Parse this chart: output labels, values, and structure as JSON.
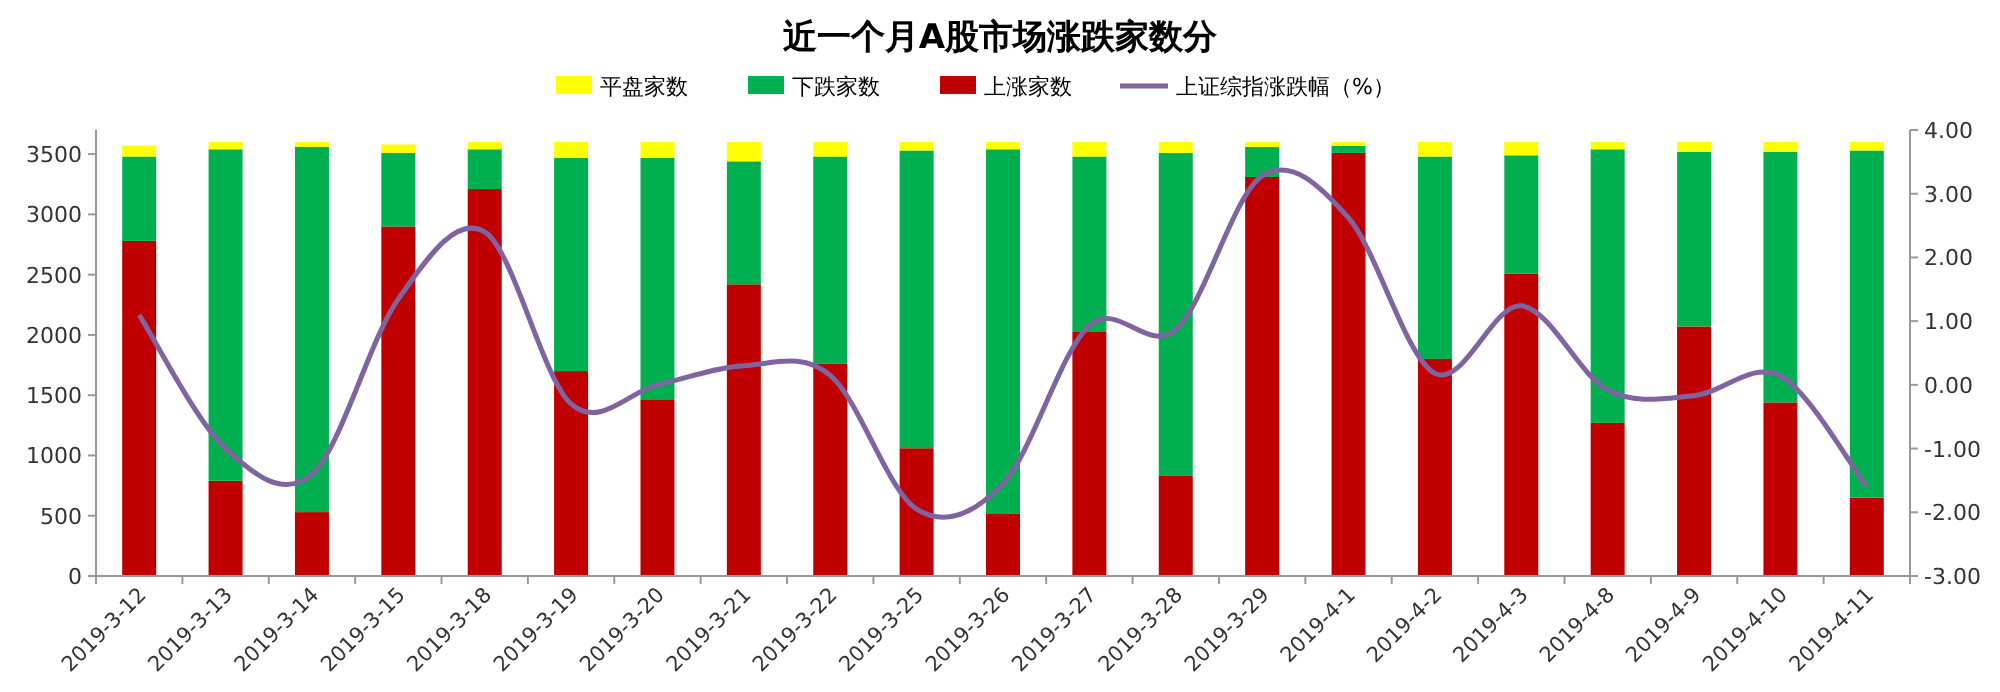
{
  "chart_data": {
    "type": "bar",
    "title": "近一个月A股市场涨跌家数分",
    "stacked": true,
    "legend": "top",
    "grid": false,
    "categories": [
      "2019-3-12",
      "2019-3-13",
      "2019-3-14",
      "2019-3-15",
      "2019-3-18",
      "2019-3-19",
      "2019-3-20",
      "2019-3-21",
      "2019-3-22",
      "2019-3-25",
      "2019-3-26",
      "2019-3-27",
      "2019-3-28",
      "2019-3-29",
      "2019-4-1",
      "2019-4-2",
      "2019-4-3",
      "2019-4-8",
      "2019-4-9",
      "2019-4-10",
      "2019-4-11"
    ],
    "ylim": [
      0,
      3700
    ],
    "yticks": [
      0,
      500,
      1000,
      1500,
      2000,
      2500,
      3000,
      3500
    ],
    "y2lim": [
      -3,
      4
    ],
    "y2ticks": [
      {
        "value": 4,
        "label": "4.00"
      },
      {
        "value": 3,
        "label": "3.00"
      },
      {
        "value": 2,
        "label": "2.00"
      },
      {
        "value": 1,
        "label": "1.00"
      },
      {
        "value": 0,
        "label": "0.00"
      },
      {
        "value": -1,
        "label": "-1.00"
      },
      {
        "value": -2,
        "label": "-2.00"
      },
      {
        "value": -3,
        "label": "-3.00"
      }
    ],
    "series": [
      {
        "name": "上涨家数",
        "color": "#c00000",
        "values": [
          2780,
          790,
          530,
          2900,
          3210,
          1700,
          1460,
          2420,
          1760,
          1060,
          520,
          2030,
          830,
          3310,
          3510,
          1800,
          2510,
          1270,
          2070,
          1440,
          650
        ]
      },
      {
        "name": "下跌家数",
        "color": "#00b050",
        "values": [
          700,
          2750,
          3030,
          610,
          330,
          1770,
          2010,
          1020,
          1720,
          2470,
          3020,
          1450,
          2680,
          250,
          60,
          1680,
          980,
          2270,
          1450,
          2080,
          2880
        ]
      },
      {
        "name": "平盘家数",
        "color": "#ffff00",
        "values": [
          90,
          60,
          40,
          70,
          60,
          130,
          130,
          160,
          120,
          70,
          60,
          120,
          90,
          40,
          30,
          120,
          110,
          60,
          80,
          80,
          70
        ]
      },
      {
        "name": "上证综指涨跌幅（%）",
        "type": "line",
        "axis": "y2",
        "color": "#8064a2",
        "values": [
          1.1,
          -1.0,
          -1.4,
          1.35,
          2.4,
          -0.3,
          0.0,
          0.3,
          0.15,
          -1.95,
          -1.55,
          0.93,
          0.87,
          3.28,
          2.62,
          0.18,
          1.24,
          -0.08,
          -0.17,
          0.14,
          -1.6
        ]
      }
    ]
  }
}
